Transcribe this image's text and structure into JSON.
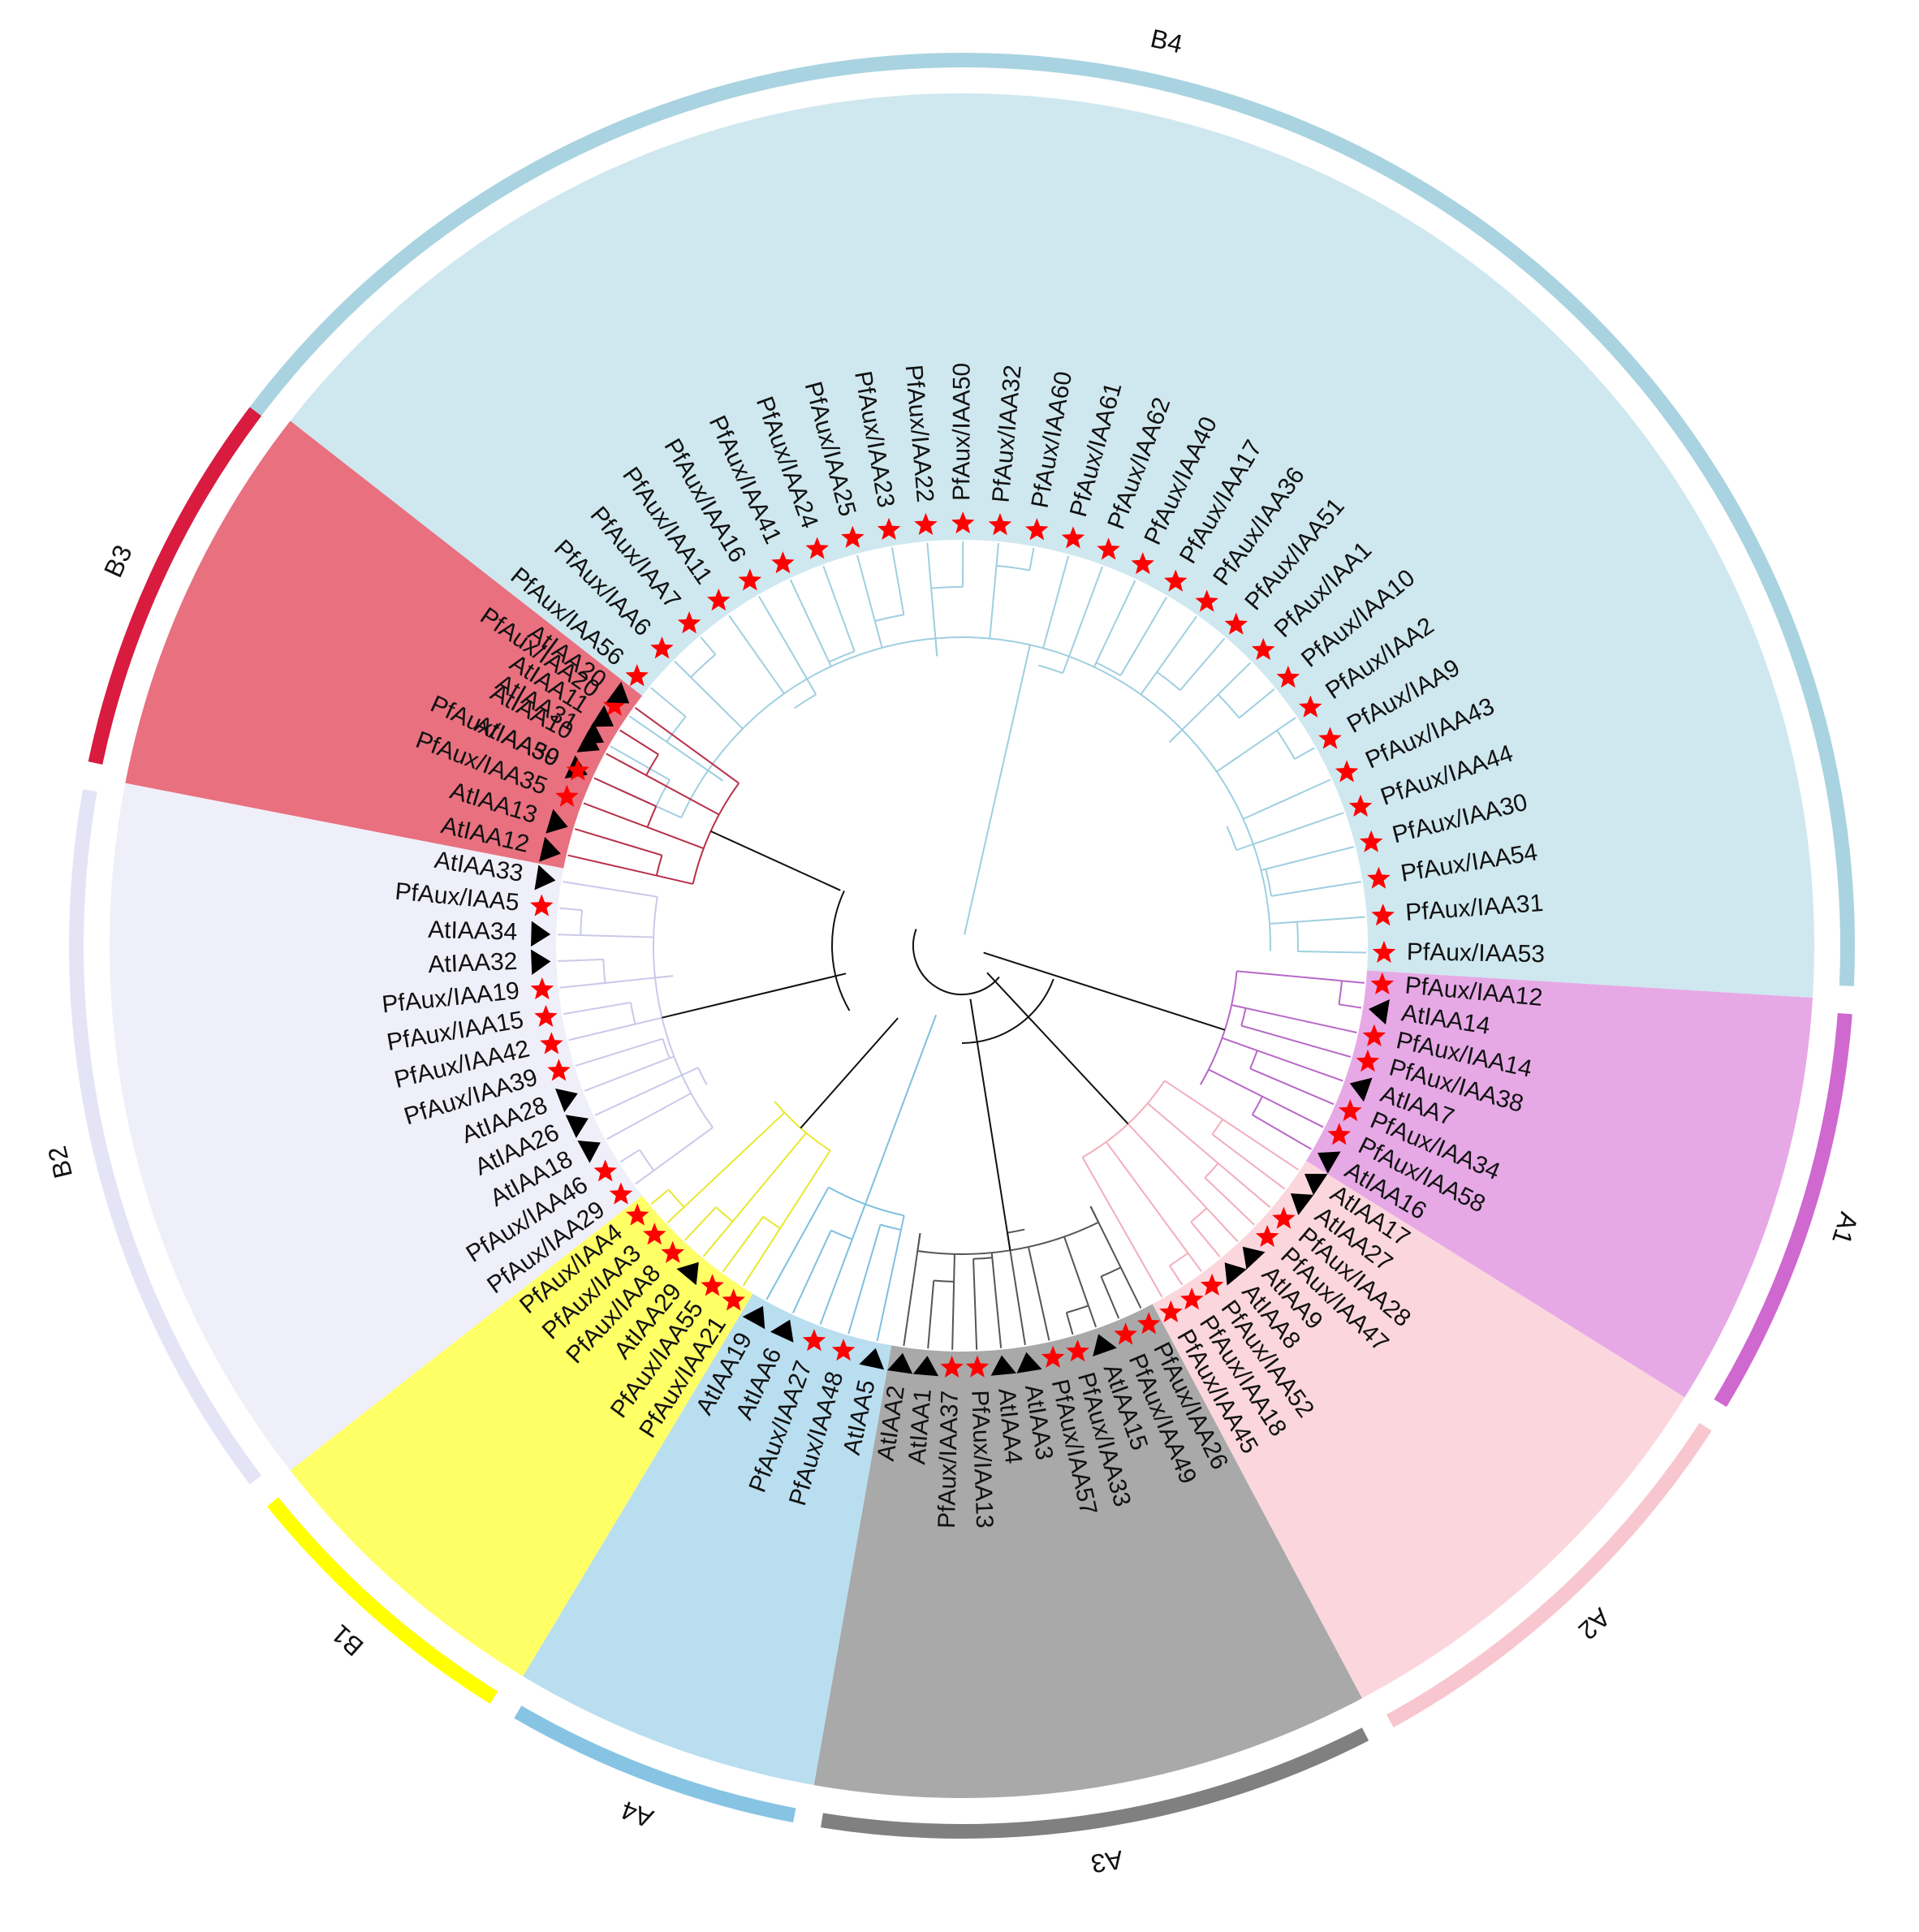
{
  "clades": [
    {
      "id": "B4",
      "label": "B4",
      "band_color": "#a9d3e0",
      "sector_color": "#cfe8ef",
      "branch_color": "#9fcfe0",
      "leaves": [
        "AtIAA30",
        "AtIAA31",
        "PfAux/IAA20",
        "PfAux/IAA56",
        "PfAux/IAA6",
        "PfAux/IAA7",
        "PfAux/IAA11",
        "PfAux/IAA16",
        "PfAux/IAA41",
        "PfAux/IAA24",
        "PfAux/IAA25",
        "PfAux/IAA23",
        "PfAux/IAA22",
        "PfAux/IAA50",
        "PfAux/IAA32",
        "PfAux/IAA60",
        "PfAux/IAA61",
        "PfAux/IAA62",
        "PfAux/IAA40",
        "PfAux/IAA17",
        "PfAux/IAA36",
        "PfAux/IAA51",
        "PfAux/IAA1",
        "PfAux/IAA10",
        "PfAux/IAA2",
        "PfAux/IAA9",
        "PfAux/IAA43",
        "PfAux/IAA44",
        "PfAux/IAA30",
        "PfAux/IAA54",
        "PfAux/IAA31",
        "PfAux/IAA53"
      ]
    },
    {
      "id": "A1",
      "label": "A1",
      "band_color": "#cf68cf",
      "sector_color": "#e6a9e6",
      "branch_color": "#b868c8",
      "leaves": [
        "PfAux/IAA12",
        "AtIAA14",
        "PfAux/IAA14",
        "PfAux/IAA38",
        "AtIAA7",
        "PfAux/IAA34",
        "PfAux/IAA58",
        "AtIAA16"
      ]
    },
    {
      "id": "A2",
      "label": "A2",
      "band_color": "#f8c6cf",
      "sector_color": "#fbd7dd",
      "branch_color": "#f2aebc",
      "leaves": [
        "AtIAA17",
        "AtIAA27",
        "PfAux/IAA28",
        "PfAux/IAA47",
        "AtIAA9",
        "AtIAA8",
        "PfAux/IAA52",
        "PfAux/IAA18",
        "PfAux/IAA45"
      ]
    },
    {
      "id": "A3",
      "label": "A3",
      "band_color": "#808080",
      "sector_color": "#a9a9a9",
      "branch_color": "#555555",
      "leaves": [
        "PfAux/IAA26",
        "PfAux/IAA49",
        "AtIAA15",
        "PfAux/IAA33",
        "PfAux/IAA57",
        "AtIAA3",
        "AtIAA4",
        "PfAux/IAA13",
        "PfAux/IAA37",
        "AtIAA1",
        "AtIAA2"
      ]
    },
    {
      "id": "A4",
      "label": "A4",
      "band_color": "#87c4e3",
      "sector_color": "#b9def0",
      "branch_color": "#7fc0de",
      "leaves": [
        "AtIAA5",
        "PfAux/IAA48",
        "PfAux/IAA27",
        "AtIAA6",
        "AtIAA19"
      ]
    },
    {
      "id": "B1",
      "label": "B1",
      "band_color": "#ffff00",
      "sector_color": "#ffff66",
      "branch_color": "#e8e830",
      "leaves": [
        "PfAux/IAA21",
        "PfAux/IAA55",
        "AtIAA29",
        "PfAux/IAA8",
        "PfAux/IAA3",
        "PfAux/IAA4"
      ]
    },
    {
      "id": "B2",
      "label": "B2",
      "band_color": "#e4e4f6",
      "sector_color": "#efeff9",
      "branch_color": "#c9c9ea",
      "leaves": [
        "PfAux/IAA29",
        "PfAux/IAA46",
        "AtIAA18",
        "AtIAA26",
        "AtIAA28",
        "PfAux/IAA39",
        "PfAux/IAA42",
        "PfAux/IAA15",
        "PfAux/IAA19",
        "AtIAA32",
        "AtIAA34",
        "PfAux/IAA5",
        "AtIAA33"
      ]
    },
    {
      "id": "B3",
      "label": "B3",
      "band_color": "#d81b3f",
      "sector_color": "#e8707f",
      "branch_color": "#b8304a",
      "leaves": [
        "AtIAA12",
        "AtIAA13",
        "PfAux/IAA35",
        "PfAux/IAA59",
        "AtIAA10",
        "AtIAA11",
        "AtIAA20"
      ]
    }
  ],
  "markers": {
    "pf_marker": "red-star",
    "at_marker": "black-triangle",
    "pf_color": "#ff0000",
    "at_color": "#000000"
  }
}
